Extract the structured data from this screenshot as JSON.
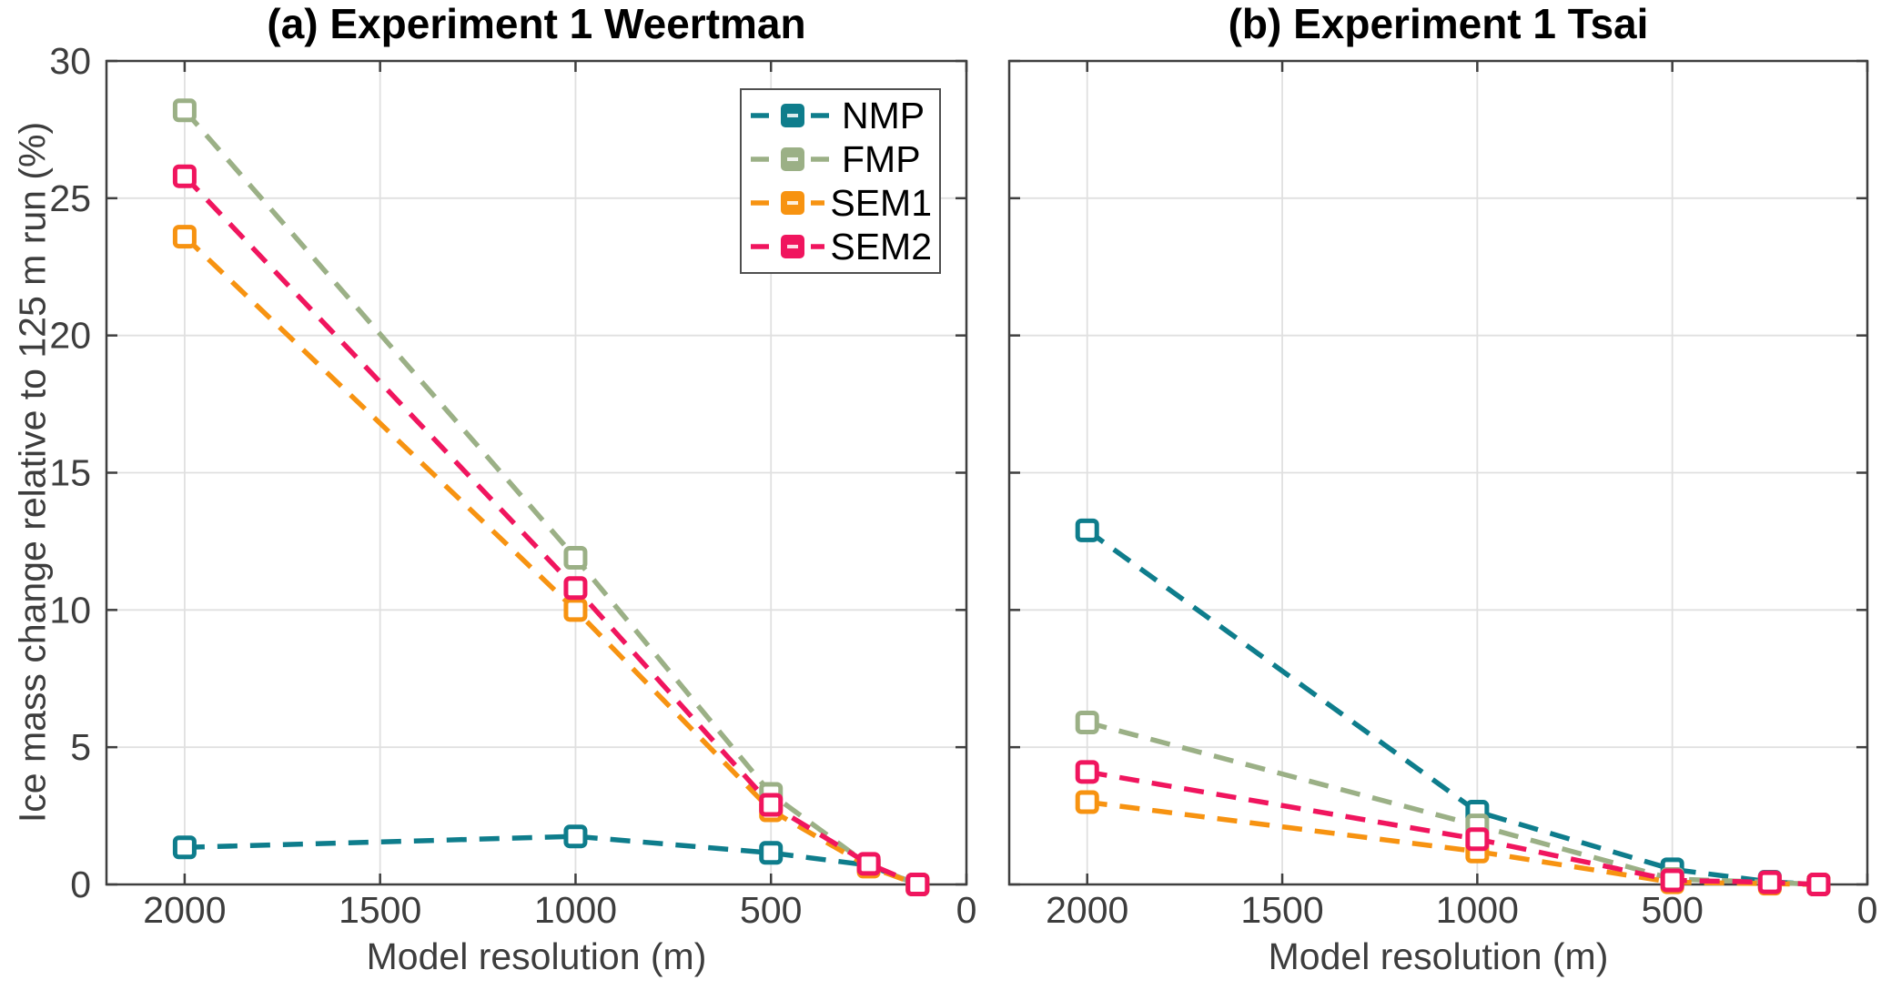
{
  "figure": {
    "background": "#ffffff"
  },
  "chart_data": [
    {
      "type": "line",
      "panel": "a",
      "title": "(a) Experiment 1 Weertman",
      "xlabel": "Model resolution (m)",
      "ylabel": "Ice mass change relative to 125 m run (%)",
      "x_axis_reversed": true,
      "xlim": [
        2200,
        0
      ],
      "ylim": [
        0,
        30
      ],
      "x_ticks": [
        2000,
        1500,
        1000,
        500,
        0
      ],
      "y_ticks": [
        0,
        5,
        10,
        15,
        20,
        25,
        30
      ],
      "show_y_tick_labels": true,
      "grid": true,
      "line_style": "dashed",
      "marker": "square",
      "x": [
        2000,
        1000,
        500,
        250,
        125
      ],
      "series": [
        {
          "name": "NMP",
          "color": "#0e7d8c",
          "values": [
            1.35,
            1.75,
            1.15,
            0.7,
            0
          ]
        },
        {
          "name": "FMP",
          "color": "#9bb086",
          "values": [
            28.2,
            11.9,
            3.3,
            0.7,
            0
          ]
        },
        {
          "name": "SEM1",
          "color": "#f79311",
          "values": [
            23.6,
            10.0,
            2.7,
            0.65,
            0
          ]
        },
        {
          "name": "SEM2",
          "color": "#f0155e",
          "values": [
            25.8,
            10.8,
            2.9,
            0.75,
            0
          ]
        }
      ],
      "legend": {
        "position": "northeast",
        "entries": [
          "NMP",
          "FMP",
          "SEM1",
          "SEM2"
        ]
      }
    },
    {
      "type": "line",
      "panel": "b",
      "title": "(b) Experiment 1 Tsai",
      "xlabel": "Model resolution (m)",
      "ylabel": "",
      "x_axis_reversed": true,
      "xlim": [
        2200,
        0
      ],
      "ylim": [
        0,
        30
      ],
      "x_ticks": [
        2000,
        1500,
        1000,
        500,
        0
      ],
      "y_ticks": [
        0,
        5,
        10,
        15,
        20,
        25,
        30
      ],
      "show_y_tick_labels": false,
      "grid": true,
      "line_style": "dashed",
      "marker": "square",
      "x": [
        2000,
        1000,
        500,
        250,
        125
      ],
      "series": [
        {
          "name": "NMP",
          "color": "#0e7d8c",
          "values": [
            12.9,
            2.65,
            0.55,
            0.1,
            0
          ]
        },
        {
          "name": "FMP",
          "color": "#9bb086",
          "values": [
            5.9,
            2.15,
            0.2,
            0.08,
            0
          ]
        },
        {
          "name": "SEM1",
          "color": "#f79311",
          "values": [
            3.0,
            1.2,
            0.08,
            0.03,
            0
          ]
        },
        {
          "name": "SEM2",
          "color": "#f0155e",
          "values": [
            4.1,
            1.65,
            0.15,
            0.08,
            0
          ]
        }
      ],
      "legend": null
    }
  ],
  "style_colors": {
    "tick_text": "#3d3d3d",
    "axis_frame": "#3f3f3f",
    "grid_line": "#e0e0e0"
  }
}
